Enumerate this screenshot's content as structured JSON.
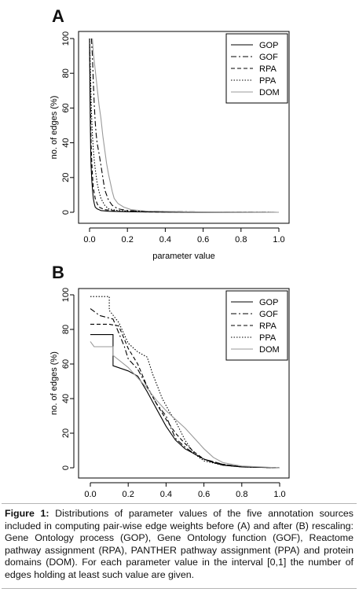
{
  "panels": [
    {
      "label": "A",
      "xlabel": "parameter value",
      "ylabel": "no. of edges (%)",
      "legend": [
        "GOP",
        "GOF",
        "RPA",
        "PPA",
        "DOM"
      ]
    },
    {
      "label": "B",
      "xlabel": "parameter value",
      "ylabel": "no. of edges (%)",
      "legend": [
        "GOP",
        "GOF",
        "RPA",
        "PPA",
        "DOM"
      ]
    }
  ],
  "caption": {
    "label": "Figure 1:",
    "text": " Distributions of parameter values of the five annotation sources included in computing pair-wise edge weights before (A) and after (B) rescaling: Gene Ontology process (GOP), Gene Ontology function (GOF), Reactome pathway assignment (RPA), PANTHER pathway assignment (PPA) and protein domains (DOM). For each parameter value in the interval [0,1] the number of edges holding at least such value are given."
  },
  "colors": {
    "GOP": "#000000",
    "GOF": "#000000",
    "RPA": "#000000",
    "PPA": "#000000",
    "DOM": "#9a9a9a"
  },
  "chart_data": [
    {
      "type": "line",
      "title": "A",
      "xlabel": "parameter value",
      "ylabel": "no. of edges (%)",
      "xlim": [
        0,
        1
      ],
      "ylim": [
        0,
        100
      ],
      "xticks": [
        0.0,
        0.2,
        0.4,
        0.6,
        0.8,
        1.0
      ],
      "yticks": [
        0,
        20,
        40,
        60,
        80,
        100
      ],
      "legend_position": "top-right",
      "series": [
        {
          "name": "GOP",
          "points": [
            [
              0.0,
              100
            ],
            [
              0.002,
              70
            ],
            [
              0.004,
              50
            ],
            [
              0.006,
              37
            ],
            [
              0.008,
              27
            ],
            [
              0.012,
              18
            ],
            [
              0.016,
              12
            ],
            [
              0.02,
              8
            ],
            [
              0.025,
              5
            ],
            [
              0.03,
              3
            ],
            [
              0.04,
              2
            ],
            [
              0.06,
              1
            ],
            [
              0.1,
              0.6
            ],
            [
              0.2,
              0.3
            ],
            [
              0.4,
              0.1
            ],
            [
              0.6,
              0.05
            ],
            [
              1.0,
              0
            ]
          ]
        },
        {
          "name": "GOF",
          "points": [
            [
              0.01,
              100
            ],
            [
              0.015,
              90
            ],
            [
              0.02,
              75
            ],
            [
              0.025,
              62
            ],
            [
              0.03,
              52
            ],
            [
              0.035,
              45
            ],
            [
              0.04,
              40
            ],
            [
              0.05,
              34
            ],
            [
              0.06,
              27
            ],
            [
              0.07,
              20
            ],
            [
              0.08,
              13
            ],
            [
              0.09,
              10
            ],
            [
              0.1,
              7
            ],
            [
              0.12,
              4
            ],
            [
              0.15,
              2
            ],
            [
              0.2,
              1
            ],
            [
              0.3,
              0.6
            ],
            [
              0.5,
              0.3
            ],
            [
              0.6,
              0.2
            ],
            [
              1.0,
              0
            ]
          ]
        },
        {
          "name": "RPA",
          "points": [
            [
              0.0,
              100
            ],
            [
              0.004,
              65
            ],
            [
              0.008,
              40
            ],
            [
              0.012,
              28
            ],
            [
              0.016,
              20
            ],
            [
              0.02,
              14
            ],
            [
              0.03,
              8
            ],
            [
              0.04,
              5
            ],
            [
              0.05,
              3
            ],
            [
              0.08,
              1.5
            ],
            [
              0.15,
              0.6
            ],
            [
              0.3,
              0.2
            ],
            [
              0.6,
              0.05
            ],
            [
              1.0,
              0
            ]
          ]
        },
        {
          "name": "PPA",
          "points": [
            [
              0.0,
              100
            ],
            [
              0.005,
              80
            ],
            [
              0.01,
              58
            ],
            [
              0.015,
              45
            ],
            [
              0.02,
              36
            ],
            [
              0.025,
              30
            ],
            [
              0.03,
              25
            ],
            [
              0.04,
              17
            ],
            [
              0.05,
              12
            ],
            [
              0.06,
              8
            ],
            [
              0.08,
              4
            ],
            [
              0.1,
              2
            ],
            [
              0.15,
              1
            ],
            [
              0.3,
              0.4
            ],
            [
              0.6,
              0.1
            ],
            [
              1.0,
              0
            ]
          ]
        },
        {
          "name": "DOM",
          "points": [
            [
              0.015,
              100
            ],
            [
              0.02,
              92
            ],
            [
              0.03,
              82
            ],
            [
              0.04,
              72
            ],
            [
              0.05,
              62
            ],
            [
              0.06,
              54
            ],
            [
              0.07,
              44
            ],
            [
              0.08,
              36
            ],
            [
              0.09,
              28
            ],
            [
              0.1,
              22
            ],
            [
              0.11,
              17
            ],
            [
              0.12,
              12
            ],
            [
              0.13,
              8
            ],
            [
              0.15,
              5
            ],
            [
              0.18,
              3
            ],
            [
              0.22,
              1.5
            ],
            [
              0.3,
              0.7
            ],
            [
              0.5,
              0.3
            ],
            [
              1.0,
              0
            ]
          ]
        }
      ]
    },
    {
      "type": "line",
      "title": "B",
      "xlabel": "parameter value",
      "ylabel": "no. of edges (%)",
      "xlim": [
        0,
        1
      ],
      "ylim": [
        0,
        100
      ],
      "xticks": [
        0.0,
        0.2,
        0.4,
        0.6,
        0.8,
        1.0
      ],
      "yticks": [
        0,
        20,
        40,
        60,
        80,
        100
      ],
      "legend_position": "top-right",
      "series": [
        {
          "name": "GOP",
          "points": [
            [
              0.0,
              77
            ],
            [
              0.12,
              77
            ],
            [
              0.12,
              59
            ],
            [
              0.2,
              56
            ],
            [
              0.25,
              53
            ],
            [
              0.3,
              44
            ],
            [
              0.35,
              34
            ],
            [
              0.4,
              24
            ],
            [
              0.45,
              16
            ],
            [
              0.5,
              11
            ],
            [
              0.55,
              8
            ],
            [
              0.6,
              5
            ],
            [
              0.65,
              3
            ],
            [
              0.7,
              1.5
            ],
            [
              0.8,
              0.5
            ],
            [
              1.0,
              0
            ]
          ]
        },
        {
          "name": "GOF",
          "points": [
            [
              0.0,
              92
            ],
            [
              0.05,
              88
            ],
            [
              0.12,
              86
            ],
            [
              0.18,
              70
            ],
            [
              0.2,
              63
            ],
            [
              0.25,
              57
            ],
            [
              0.3,
              47
            ],
            [
              0.35,
              37
            ],
            [
              0.4,
              30
            ],
            [
              0.43,
              22
            ],
            [
              0.45,
              17
            ],
            [
              0.5,
              12
            ],
            [
              0.55,
              8
            ],
            [
              0.6,
              5
            ],
            [
              0.7,
              2
            ],
            [
              0.8,
              0.5
            ],
            [
              1.0,
              0
            ]
          ]
        },
        {
          "name": "RPA",
          "points": [
            [
              0.0,
              83
            ],
            [
              0.05,
              83
            ],
            [
              0.1,
              83
            ],
            [
              0.15,
              82
            ],
            [
              0.2,
              69
            ],
            [
              0.25,
              60
            ],
            [
              0.3,
              47
            ],
            [
              0.35,
              37
            ],
            [
              0.4,
              28
            ],
            [
              0.45,
              20
            ],
            [
              0.5,
              14
            ],
            [
              0.55,
              9
            ],
            [
              0.6,
              5
            ],
            [
              0.7,
              2
            ],
            [
              0.8,
              0.6
            ],
            [
              1.0,
              0
            ]
          ]
        },
        {
          "name": "PPA",
          "points": [
            [
              0.0,
              99
            ],
            [
              0.1,
              99
            ],
            [
              0.1,
              91
            ],
            [
              0.15,
              84
            ],
            [
              0.2,
              72
            ],
            [
              0.25,
              67
            ],
            [
              0.3,
              64
            ],
            [
              0.33,
              54
            ],
            [
              0.38,
              40
            ],
            [
              0.42,
              32
            ],
            [
              0.45,
              27
            ],
            [
              0.5,
              16
            ],
            [
              0.55,
              8
            ],
            [
              0.6,
              4
            ],
            [
              0.7,
              1.5
            ],
            [
              0.8,
              0.5
            ],
            [
              1.0,
              0
            ]
          ]
        },
        {
          "name": "DOM",
          "points": [
            [
              0.0,
              73
            ],
            [
              0.02,
              70
            ],
            [
              0.12,
              70
            ],
            [
              0.12,
              65
            ],
            [
              0.2,
              58
            ],
            [
              0.25,
              52
            ],
            [
              0.3,
              46
            ],
            [
              0.35,
              39
            ],
            [
              0.4,
              33
            ],
            [
              0.45,
              28
            ],
            [
              0.5,
              23
            ],
            [
              0.55,
              17
            ],
            [
              0.6,
              11
            ],
            [
              0.65,
              6
            ],
            [
              0.7,
              3
            ],
            [
              0.8,
              1
            ],
            [
              1.0,
              0
            ]
          ]
        }
      ]
    }
  ]
}
